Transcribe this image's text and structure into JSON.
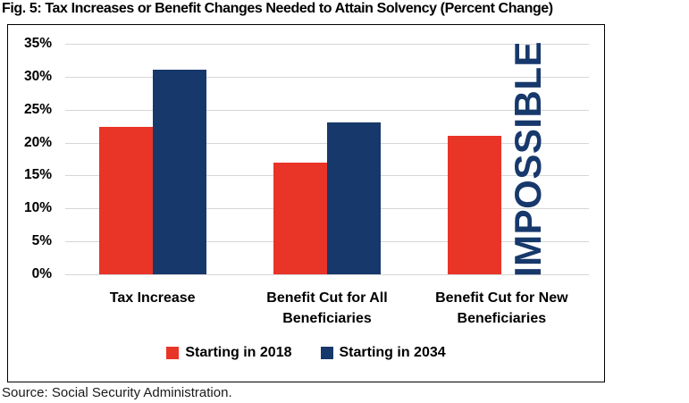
{
  "header": {
    "title": "Fig. 5: Tax Increases or Benefit Changes Needed to Attain Solvency (Percent Change)"
  },
  "footer": {
    "source": "Source: Social Security Administration."
  },
  "chart_data": {
    "type": "bar",
    "title": "Fig. 5: Tax Increases or Benefit Changes Needed to Attain Solvency (Percent Change)",
    "categories": [
      "Tax Increase",
      "Benefit Cut for All Beneficiaries",
      "Benefit Cut for New Beneficiaries"
    ],
    "series": [
      {
        "name": "Starting in 2018",
        "color": "#E93428",
        "values": [
          22.4,
          17,
          21
        ]
      },
      {
        "name": "Starting in 2034",
        "color": "#17386B",
        "values": [
          31,
          23,
          null
        ]
      }
    ],
    "annotation": {
      "text": "IMPOSSIBLE",
      "applies_to_category": "Benefit Cut for New Beneficiaries",
      "applies_to_series": "Starting in 2034",
      "color": "#17386B",
      "rotation_deg": -90
    },
    "ylim": [
      0,
      35
    ],
    "ytick_labels": [
      "35%",
      "30%",
      "25%",
      "20%",
      "15%",
      "10%",
      "5%",
      "0%"
    ],
    "ytick_interval_percent": 5,
    "grid": true,
    "gridline_color": "#D6D6D6",
    "legend_position": "bottom",
    "source": "Source: Social Security Administration."
  }
}
